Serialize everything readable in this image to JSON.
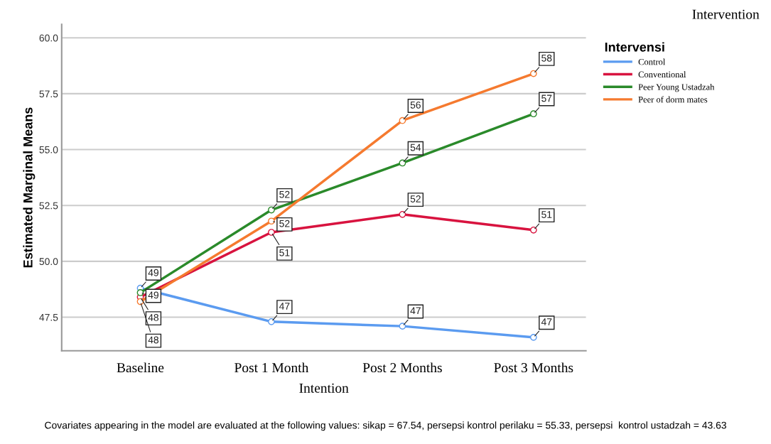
{
  "chart_data": {
    "type": "line",
    "xlabel": "Intention",
    "ylabel": "Estimated Marginal Means",
    "legend_title": "Intervensi",
    "categories": [
      "Baseline",
      "Post 1 Month",
      "Post 2 Months",
      "Post 3 Months"
    ],
    "series": [
      {
        "name": "Control",
        "color": "#5b9bf0",
        "values": [
          48.8,
          47.3,
          47.1,
          46.6
        ],
        "value_labels": [
          "49",
          "47",
          "47",
          "47"
        ]
      },
      {
        "name": "Conventional",
        "color": "#d8133f",
        "values": [
          48.4,
          51.3,
          52.1,
          51.4
        ],
        "value_labels": [
          "48",
          "51",
          "52",
          "51"
        ]
      },
      {
        "name": "Peer Young Ustadzah",
        "color": "#2a8a2a",
        "values": [
          48.6,
          52.3,
          54.4,
          56.6
        ],
        "value_labels": [
          "49",
          "52",
          "54",
          "57"
        ]
      },
      {
        "name": "Peer of dorm mates",
        "color": "#f57a2f",
        "values": [
          48.2,
          51.8,
          56.3,
          58.4
        ],
        "value_labels": [
          "48",
          "52",
          "56",
          "58"
        ]
      }
    ],
    "ylim": [
      46,
      60.6
    ],
    "yticks": [
      {
        "value": 47.5,
        "label": "47.5"
      },
      {
        "value": 50,
        "label": "50.0"
      },
      {
        "value": 52.5,
        "label": "52.5"
      },
      {
        "value": 55,
        "label": "55.0"
      },
      {
        "value": 57.5,
        "label": "57.5"
      },
      {
        "value": 60,
        "label": "60.0"
      }
    ],
    "grid": "y",
    "legend": "top right",
    "marker": "circle",
    "line_style": "solid",
    "annotations": [
      "Intervention",
      "Covariates appearing in the model are evaluated at the following values: sikap = 67.54, persepsi kontrol perilaku = 55.33, persepsi  kontrol ustadzah = 43.63"
    ]
  }
}
